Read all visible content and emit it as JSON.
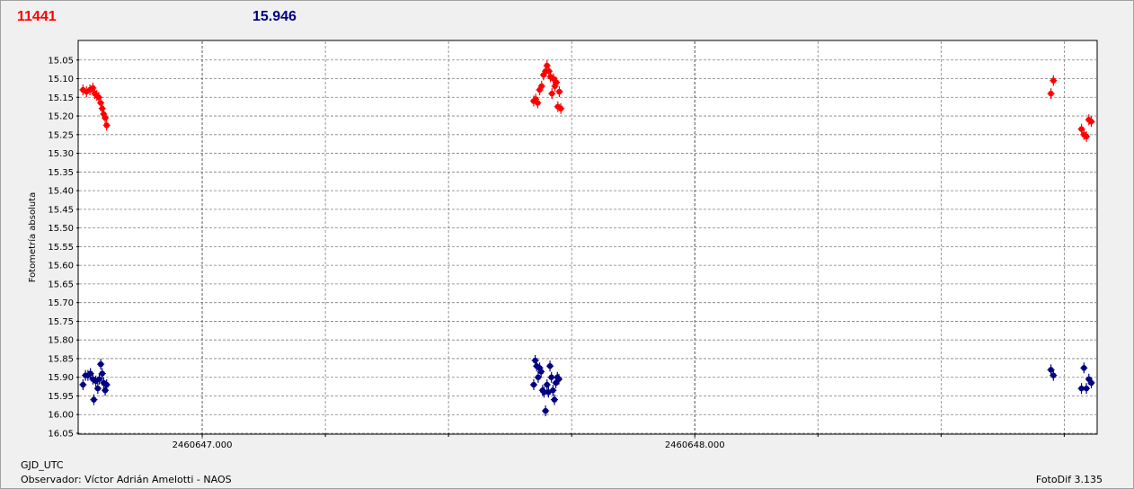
{
  "header": {
    "left_value": "11441",
    "right_value": "15.946"
  },
  "footer": {
    "x_axis_label": "GJD_UTC",
    "observer": "Observador: Víctor Adrián Amelotti - NAOS",
    "version": "FotoDif 3.135"
  },
  "colors": {
    "series_a": "#ff0000",
    "series_b": "#000080",
    "grid": "#808080"
  },
  "chart_data": {
    "type": "scatter",
    "ylabel": "Fotometría absoluta",
    "xlabel": "GJD_UTC",
    "y_inverted": true,
    "ylim": [
      15.0,
      16.05
    ],
    "xlim": [
      2460646.75,
      2460648.815
    ],
    "y_ticks": [
      "15.05",
      "15.10",
      "15.15",
      "15.20",
      "15.25",
      "15.30",
      "15.35",
      "15.40",
      "15.45",
      "15.50",
      "15.55",
      "15.60",
      "15.65",
      "15.70",
      "15.75",
      "15.80",
      "15.85",
      "15.90",
      "15.95",
      "16.00",
      "16.05"
    ],
    "x_labeled_ticks": [
      {
        "value": 2460647.0,
        "label": "2460647.000"
      },
      {
        "value": 2460648.0,
        "label": "2460648.000"
      }
    ],
    "grid": true,
    "series": [
      {
        "color": "#ff0000",
        "points": [
          [
            2460646.758,
            15.13
          ],
          [
            2460646.765,
            15.135
          ],
          [
            2460646.772,
            15.13
          ],
          [
            2460646.778,
            15.125
          ],
          [
            2460646.782,
            15.14
          ],
          [
            2460646.786,
            15.145
          ],
          [
            2460646.79,
            15.15
          ],
          [
            2460646.794,
            15.165
          ],
          [
            2460646.797,
            15.18
          ],
          [
            2460646.8,
            15.195
          ],
          [
            2460646.803,
            15.205
          ],
          [
            2460646.806,
            15.225
          ],
          [
            2460647.673,
            15.16
          ],
          [
            2460647.677,
            15.155
          ],
          [
            2460647.681,
            15.165
          ],
          [
            2460647.685,
            15.13
          ],
          [
            2460647.689,
            15.12
          ],
          [
            2460647.693,
            15.09
          ],
          [
            2460647.697,
            15.08
          ],
          [
            2460647.7,
            15.065
          ],
          [
            2460647.704,
            15.08
          ],
          [
            2460647.707,
            15.095
          ],
          [
            2460647.71,
            15.14
          ],
          [
            2460647.713,
            15.1
          ],
          [
            2460647.716,
            15.12
          ],
          [
            2460647.719,
            15.11
          ],
          [
            2460647.722,
            15.175
          ],
          [
            2460647.725,
            15.135
          ],
          [
            2460647.728,
            15.18
          ],
          [
            2460648.723,
            15.14
          ],
          [
            2460648.728,
            15.105
          ],
          [
            2460648.785,
            15.235
          ],
          [
            2460648.79,
            15.25
          ],
          [
            2460648.795,
            15.255
          ],
          [
            2460648.8,
            15.21
          ],
          [
            2460648.805,
            15.215
          ]
        ]
      },
      {
        "color": "#000080",
        "points": [
          [
            2460646.758,
            15.92
          ],
          [
            2460646.763,
            15.895
          ],
          [
            2460646.768,
            15.895
          ],
          [
            2460646.773,
            15.89
          ],
          [
            2460646.778,
            15.905
          ],
          [
            2460646.78,
            15.96
          ],
          [
            2460646.784,
            15.91
          ],
          [
            2460646.788,
            15.93
          ],
          [
            2460646.791,
            15.905
          ],
          [
            2460646.794,
            15.865
          ],
          [
            2460646.797,
            15.89
          ],
          [
            2460646.8,
            15.915
          ],
          [
            2460646.803,
            15.935
          ],
          [
            2460646.806,
            15.92
          ],
          [
            2460647.673,
            15.92
          ],
          [
            2460647.676,
            15.855
          ],
          [
            2460647.679,
            15.87
          ],
          [
            2460647.682,
            15.9
          ],
          [
            2460647.685,
            15.875
          ],
          [
            2460647.688,
            15.885
          ],
          [
            2460647.691,
            15.935
          ],
          [
            2460647.694,
            15.94
          ],
          [
            2460647.697,
            15.99
          ],
          [
            2460647.7,
            15.92
          ],
          [
            2460647.703,
            15.94
          ],
          [
            2460647.706,
            15.87
          ],
          [
            2460647.709,
            15.9
          ],
          [
            2460647.712,
            15.935
          ],
          [
            2460647.715,
            15.96
          ],
          [
            2460647.718,
            15.915
          ],
          [
            2460647.721,
            15.9
          ],
          [
            2460647.724,
            15.905
          ],
          [
            2460648.723,
            15.88
          ],
          [
            2460648.728,
            15.895
          ],
          [
            2460648.785,
            15.93
          ],
          [
            2460648.79,
            15.875
          ],
          [
            2460648.795,
            15.93
          ],
          [
            2460648.8,
            15.905
          ],
          [
            2460648.805,
            15.915
          ]
        ]
      }
    ]
  }
}
